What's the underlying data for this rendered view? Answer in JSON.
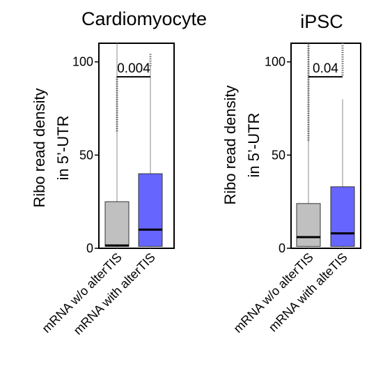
{
  "chart_data": [
    {
      "type": "box",
      "title": "Cardiomyocyte",
      "ylabel_lines": [
        "Ribo read density",
        "in 5’-UTR"
      ],
      "ylim": [
        0,
        110
      ],
      "yticks": [
        0,
        50,
        100
      ],
      "categories": [
        "mRNA w/o alterTIS",
        "mRNA with alterTIS"
      ],
      "boxes": [
        {
          "category": "mRNA w/o alterTIS",
          "color": "#c0c0c0",
          "q1": 1,
          "median": 1.5,
          "q3": 25,
          "whisker_low": 0,
          "whisker_high": 110,
          "outlier_band": [
            63,
            93
          ]
        },
        {
          "category": "mRNA with alterTIS",
          "color": "#6666ff",
          "q1": 1,
          "median": 10,
          "q3": 40,
          "whisker_low": 0,
          "whisker_high": 98,
          "outlier_band": [
            98,
            105
          ]
        }
      ],
      "significance": {
        "label": "0.004",
        "y": 92
      }
    },
    {
      "type": "box",
      "title": "iPSC",
      "ylabel_lines": [
        "Ribo read density",
        "in 5’-UTR"
      ],
      "ylim": [
        0,
        110
      ],
      "yticks": [
        0,
        50,
        100
      ],
      "categories": [
        "mRNA w/o alterTIS",
        "mRNA with alteTIS"
      ],
      "boxes": [
        {
          "category": "mRNA w/o alterTIS",
          "color": "#c0c0c0",
          "q1": 1,
          "median": 6,
          "q3": 24,
          "whisker_low": 0,
          "whisker_high": 110,
          "outlier_band": [
            58,
            110
          ]
        },
        {
          "category": "mRNA with alteTIS",
          "color": "#6666ff",
          "q1": 1,
          "median": 8,
          "q3": 33,
          "whisker_low": 0,
          "whisker_high": 80,
          "outlier_band": [
            93,
            110
          ]
        }
      ],
      "significance": {
        "label": "0.04",
        "y": 92
      }
    }
  ]
}
